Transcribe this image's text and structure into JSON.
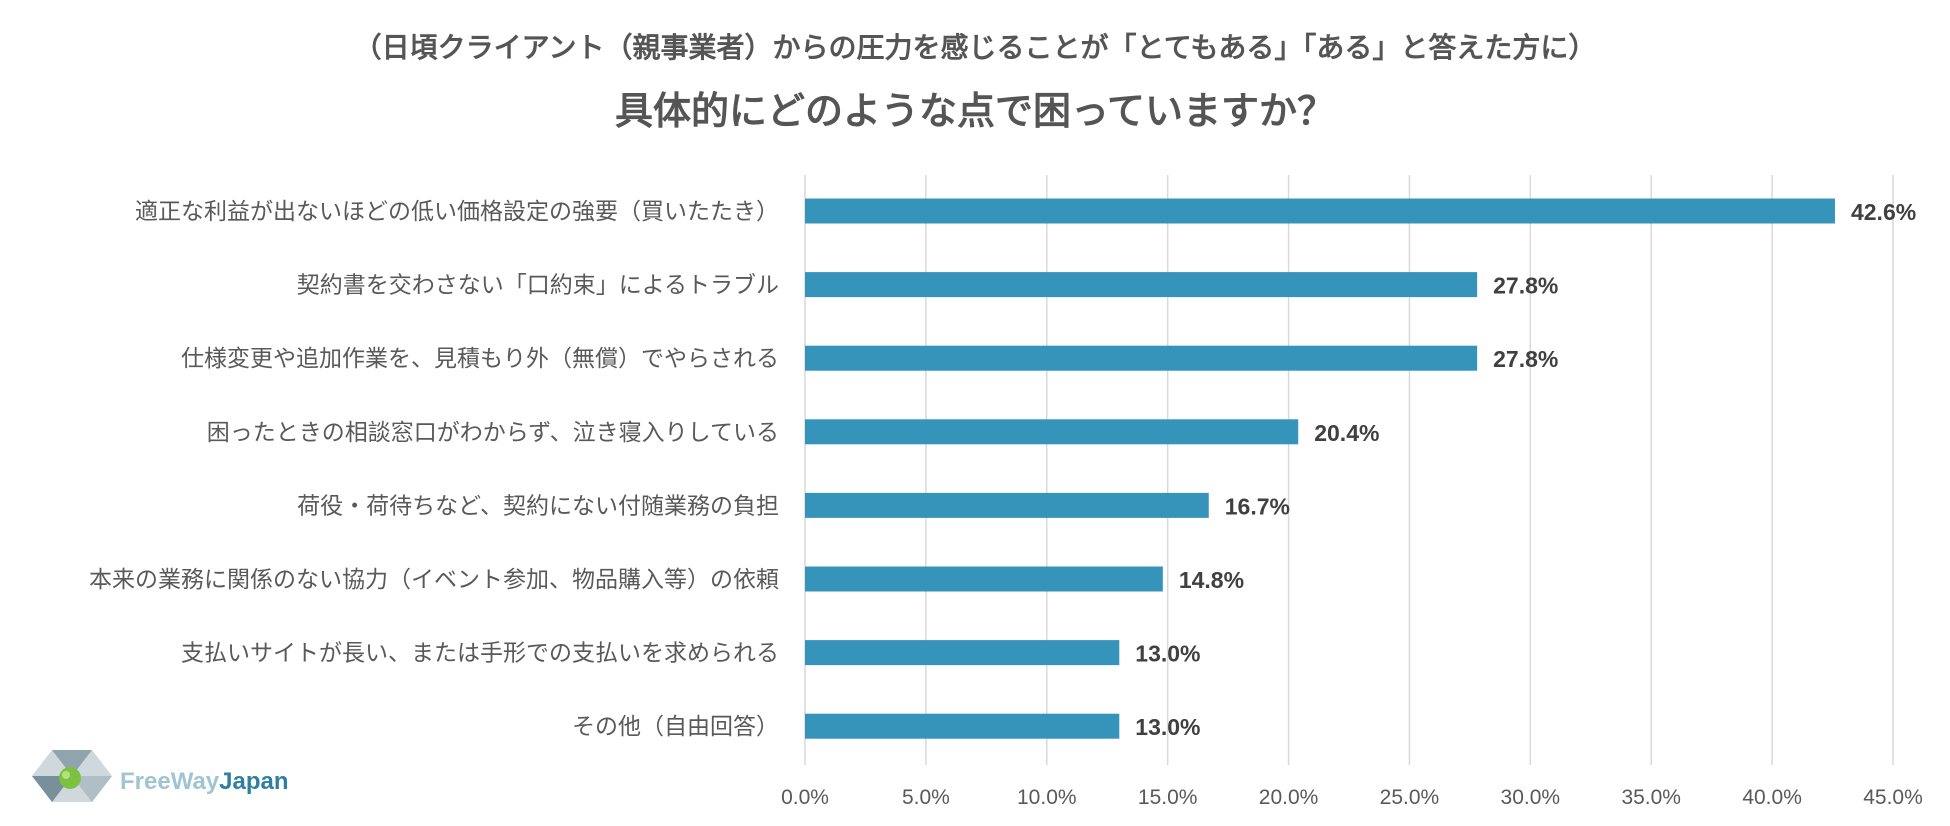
{
  "header": {
    "subtitle": "（日頃クライアント（親事業者）からの圧力を感じることが「とてもある」「ある」と答えた方に）",
    "title": "具体的にどのような点で困っていますか？"
  },
  "logo": {
    "text_a": "FreeWay",
    "text_b": "Japan"
  },
  "colors": {
    "bar": "#3694bb",
    "grid": "#d9d9d9",
    "text": "#595959",
    "label": "#404040"
  },
  "chart_data": {
    "type": "bar",
    "orientation": "horizontal",
    "categories": [
      "適正な利益が出ないほどの低い価格設定の強要（買いたたき）",
      "契約書を交わさない「口約束」によるトラブル",
      "仕様変更や追加作業を、見積もり外（無償）でやらされる",
      "困ったときの相談窓口がわからず、泣き寝入りしている",
      "荷役・荷待ちなど、契約にない付随業務の負担",
      "本来の業務に関係のない協力（イベント参加、物品購入等）の依頼",
      "支払いサイトが長い、または手形での支払いを求められる",
      "その他（自由回答）"
    ],
    "values": [
      42.6,
      27.8,
      27.8,
      20.4,
      16.7,
      14.8,
      13.0,
      13.0
    ],
    "value_labels": [
      "42.6%",
      "27.8%",
      "27.8%",
      "20.4%",
      "16.7%",
      "14.8%",
      "13.0%",
      "13.0%"
    ],
    "xlim": [
      0,
      45
    ],
    "xticks": [
      "0.0%",
      "5.0%",
      "10.0%",
      "15.0%",
      "20.0%",
      "25.0%",
      "30.0%",
      "35.0%",
      "40.0%",
      "45.0%"
    ],
    "grid": true,
    "legend": "none"
  }
}
